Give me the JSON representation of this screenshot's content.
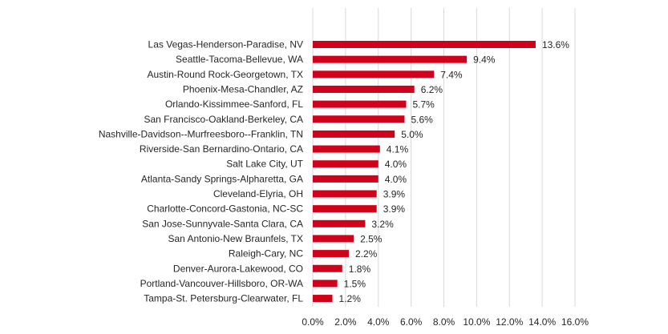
{
  "chart_data": {
    "type": "bar",
    "orientation": "horizontal",
    "categories": [
      "Las Vegas-Henderson-Paradise, NV",
      "Seattle-Tacoma-Bellevue, WA",
      "Austin-Round Rock-Georgetown, TX",
      "Phoenix-Mesa-Chandler, AZ",
      "Orlando-Kissimmee-Sanford, FL",
      "San Francisco-Oakland-Berkeley, CA",
      "Nashville-Davidson--Murfreesboro--Franklin, TN",
      "Riverside-San Bernardino-Ontario, CA",
      "Salt Lake City, UT",
      "Atlanta-Sandy Springs-Alpharetta, GA",
      "Cleveland-Elyria, OH",
      "Charlotte-Concord-Gastonia, NC-SC",
      "San Jose-Sunnyvale-Santa Clara, CA",
      "San Antonio-New Braunfels, TX",
      "Raleigh-Cary, NC",
      "Denver-Aurora-Lakewood, CO",
      "Portland-Vancouver-Hillsboro, OR-WA",
      "Tampa-St. Petersburg-Clearwater, FL"
    ],
    "values": [
      13.6,
      9.4,
      7.4,
      6.2,
      5.7,
      5.6,
      5.0,
      4.1,
      4.0,
      4.0,
      3.9,
      3.9,
      3.2,
      2.5,
      2.2,
      1.8,
      1.5,
      1.2
    ],
    "value_labels": [
      "13.6%",
      "9.4%",
      "7.4%",
      "6.2%",
      "5.7%",
      "5.6%",
      "5.0%",
      "4.1%",
      "4.0%",
      "4.0%",
      "3.9%",
      "3.9%",
      "3.2%",
      "2.5%",
      "2.2%",
      "1.8%",
      "1.5%",
      "1.2%"
    ],
    "x_ticks": [
      0,
      2,
      4,
      6,
      8,
      10,
      12,
      14,
      16
    ],
    "x_tick_labels": [
      "0.0%",
      "2.0%",
      "4.0%",
      "6.0%",
      "8.0%",
      "10.0%",
      "12.0%",
      "14.0%",
      "16.0%"
    ],
    "xlim": [
      0,
      16
    ],
    "title": "",
    "xlabel": "",
    "ylabel": "",
    "grid": "vertical",
    "legend": "none",
    "colors": {
      "bar": "#D0021B",
      "grid": "#D9D9D9",
      "text": "#262626"
    }
  }
}
